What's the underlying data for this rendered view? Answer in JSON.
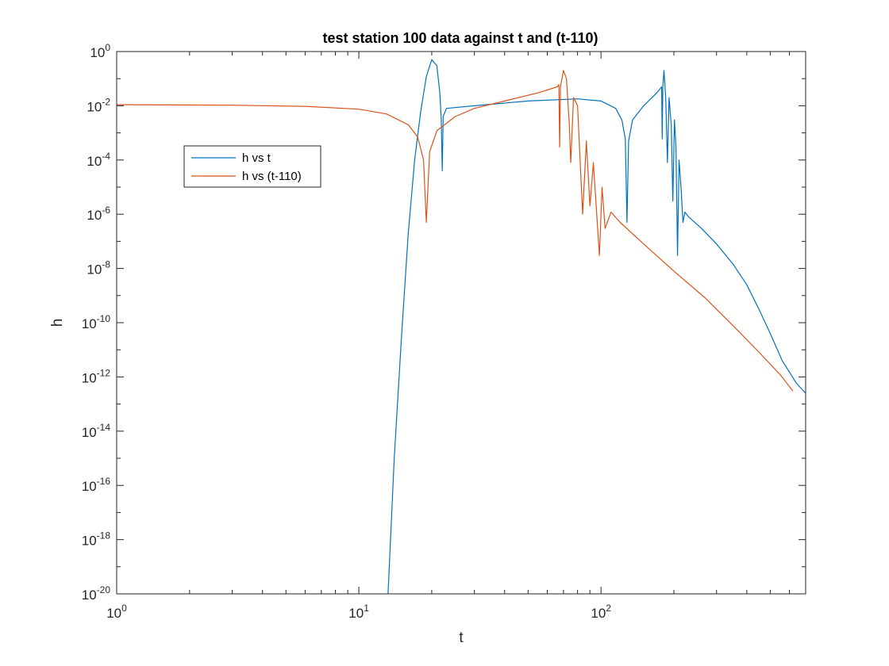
{
  "chart_data": {
    "type": "line",
    "title": "test station 100 data against t and (t-110)",
    "xlabel": "t",
    "ylabel": "h",
    "xscale": "log",
    "yscale": "log",
    "xlim": [
      1,
      700
    ],
    "ylim": [
      1e-20,
      1
    ],
    "x_ticks": [
      {
        "value": 1,
        "base": "10",
        "exp": "0"
      },
      {
        "value": 10,
        "base": "10",
        "exp": "1"
      },
      {
        "value": 100,
        "base": "10",
        "exp": "2"
      }
    ],
    "y_ticks": [
      {
        "value": 1,
        "base": "10",
        "exp": "0"
      },
      {
        "value": 0.01,
        "base": "10",
        "exp": "-2"
      },
      {
        "value": 0.0001,
        "base": "10",
        "exp": "-4"
      },
      {
        "value": 1e-06,
        "base": "10",
        "exp": "-6"
      },
      {
        "value": 1e-08,
        "base": "10",
        "exp": "-8"
      },
      {
        "value": 1e-10,
        "base": "10",
        "exp": "-10"
      },
      {
        "value": 1e-12,
        "base": "10",
        "exp": "-12"
      },
      {
        "value": 1e-14,
        "base": "10",
        "exp": "-14"
      },
      {
        "value": 1e-16,
        "base": "10",
        "exp": "-16"
      },
      {
        "value": 1e-18,
        "base": "10",
        "exp": "-18"
      },
      {
        "value": 1e-20,
        "base": "10",
        "exp": "-20"
      }
    ],
    "grid": false,
    "legend_position": "upper-left",
    "series": [
      {
        "name": "h vs t",
        "color": "#0072BD",
        "points": [
          [
            13.2,
            1e-20
          ],
          [
            14.0,
            1e-15
          ],
          [
            15.0,
            3e-11
          ],
          [
            16.0,
            2e-07
          ],
          [
            17.0,
            0.0001
          ],
          [
            18.0,
            0.006
          ],
          [
            19.0,
            0.12
          ],
          [
            20.0,
            0.5
          ],
          [
            21.0,
            0.3
          ],
          [
            21.6,
            0.03
          ],
          [
            21.9,
            0.003
          ],
          [
            22.1,
            4e-05
          ],
          [
            22.3,
            0.004
          ],
          [
            23.0,
            0.008
          ],
          [
            30.0,
            0.01
          ],
          [
            50.0,
            0.015
          ],
          [
            80.0,
            0.018
          ],
          [
            100.0,
            0.015
          ],
          [
            115.0,
            0.008
          ],
          [
            122.0,
            0.003
          ],
          [
            126.0,
            0.0006
          ],
          [
            128.0,
            5e-07
          ],
          [
            130.0,
            0.0005
          ],
          [
            135.0,
            0.003
          ],
          [
            150.0,
            0.01
          ],
          [
            170.0,
            0.03
          ],
          [
            178.0,
            0.05
          ],
          [
            179.0,
            0.0006
          ],
          [
            180.0,
            0.05
          ],
          [
            182.0,
            0.2
          ],
          [
            185.0,
            0.02
          ],
          [
            188.0,
            8e-05
          ],
          [
            191.0,
            0.02
          ],
          [
            195.0,
            0.002
          ],
          [
            198.0,
            3e-06
          ],
          [
            201.0,
            0.003
          ],
          [
            204.0,
            0.0003
          ],
          [
            207.0,
            3e-08
          ],
          [
            210.0,
            0.0001
          ],
          [
            214.0,
            1e-05
          ],
          [
            218.0,
            5e-07
          ],
          [
            222.0,
            1.2e-06
          ],
          [
            230.0,
            8e-07
          ],
          [
            260.0,
            3e-07
          ],
          [
            300.0,
            8e-08
          ],
          [
            350.0,
            1.5e-08
          ],
          [
            400.0,
            2.5e-09
          ],
          [
            450.0,
            3e-10
          ],
          [
            500.0,
            4e-11
          ],
          [
            560.0,
            4e-12
          ],
          [
            640.0,
            6e-13
          ],
          [
            700.0,
            2.5e-13
          ]
        ]
      },
      {
        "name": "h vs (t-110)",
        "color": "#D95319",
        "points": [
          [
            1.0,
            0.011
          ],
          [
            3.0,
            0.0105
          ],
          [
            6.0,
            0.0095
          ],
          [
            10.0,
            0.0075
          ],
          [
            13.0,
            0.005
          ],
          [
            16.0,
            0.002
          ],
          [
            17.5,
            0.0007
          ],
          [
            18.5,
            0.0001
          ],
          [
            19.0,
            5e-07
          ],
          [
            19.6,
            0.0002
          ],
          [
            21.0,
            0.0012
          ],
          [
            25.0,
            0.004
          ],
          [
            30.0,
            0.008
          ],
          [
            40.0,
            0.015
          ],
          [
            55.0,
            0.03
          ],
          [
            66.0,
            0.05
          ],
          [
            67.0,
            0.06
          ],
          [
            67.5,
            0.0003
          ],
          [
            68.0,
            0.05
          ],
          [
            70.0,
            0.2
          ],
          [
            72.0,
            0.1
          ],
          [
            74.0,
            0.002
          ],
          [
            75.0,
            8e-05
          ],
          [
            77.0,
            0.02
          ],
          [
            80.0,
            0.01
          ],
          [
            84.0,
            1e-06
          ],
          [
            87.0,
            0.0005
          ],
          [
            90.0,
            2e-06
          ],
          [
            93.0,
            8e-05
          ],
          [
            96.0,
            1e-06
          ],
          [
            98.5,
            3e-08
          ],
          [
            101.0,
            1e-05
          ],
          [
            104.0,
            3e-07
          ],
          [
            110.0,
            1.2e-06
          ],
          [
            120.0,
            5e-07
          ],
          [
            150.0,
            8e-08
          ],
          [
            200.0,
            8e-09
          ],
          [
            270.0,
            8e-10
          ],
          [
            350.0,
            8e-11
          ],
          [
            450.0,
            8e-12
          ],
          [
            550.0,
            1.2e-12
          ],
          [
            620.0,
            3e-13
          ]
        ]
      }
    ]
  }
}
